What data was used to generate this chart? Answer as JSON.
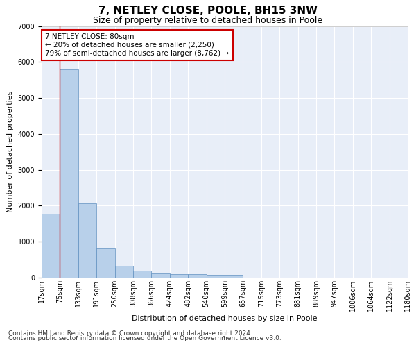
{
  "title1": "7, NETLEY CLOSE, POOLE, BH15 3NW",
  "title2": "Size of property relative to detached houses in Poole",
  "xlabel": "Distribution of detached houses by size in Poole",
  "ylabel": "Number of detached properties",
  "bin_labels": [
    "17sqm",
    "75sqm",
    "133sqm",
    "191sqm",
    "250sqm",
    "308sqm",
    "366sqm",
    "424sqm",
    "482sqm",
    "540sqm",
    "599sqm",
    "657sqm",
    "715sqm",
    "773sqm",
    "831sqm",
    "889sqm",
    "947sqm",
    "1006sqm",
    "1064sqm",
    "1122sqm",
    "1180sqm"
  ],
  "bar_values": [
    1780,
    5800,
    2060,
    820,
    330,
    185,
    120,
    100,
    100,
    70,
    70,
    0,
    0,
    0,
    0,
    0,
    0,
    0,
    0,
    0
  ],
  "bar_color": "#b8d0ea",
  "bar_edge_color": "#6090c0",
  "annotation_text": "7 NETLEY CLOSE: 80sqm\n← 20% of detached houses are smaller (2,250)\n79% of semi-detached houses are larger (8,762) →",
  "annotation_box_color": "#ffffff",
  "annotation_border_color": "#cc0000",
  "ylim": [
    0,
    7000
  ],
  "yticks": [
    0,
    1000,
    2000,
    3000,
    4000,
    5000,
    6000,
    7000
  ],
  "footer1": "Contains HM Land Registry data © Crown copyright and database right 2024.",
  "footer2": "Contains public sector information licensed under the Open Government Licence v3.0.",
  "plot_bg_color": "#e8eef8",
  "grid_color": "#ffffff",
  "title1_fontsize": 11,
  "title2_fontsize": 9,
  "axis_label_fontsize": 8,
  "tick_fontsize": 7,
  "footer_fontsize": 6.5,
  "annotation_fontsize": 7.5
}
